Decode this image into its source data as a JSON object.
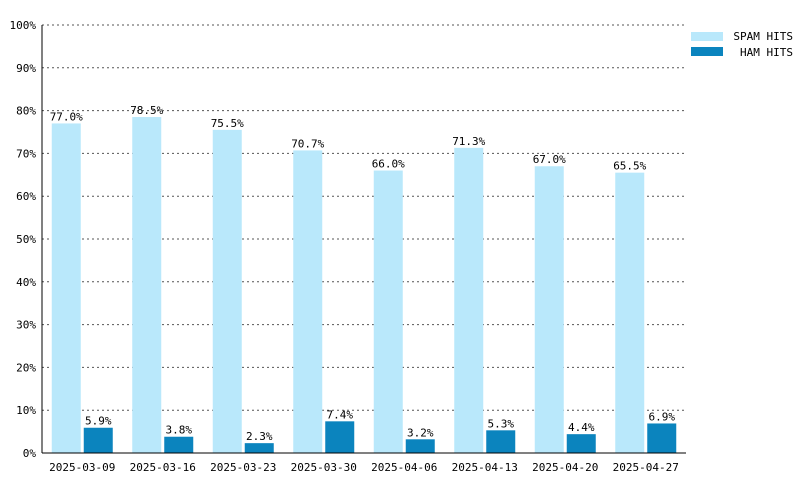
{
  "chart_data": {
    "type": "bar",
    "categories": [
      "2025-03-09",
      "2025-03-16",
      "2025-03-23",
      "2025-03-30",
      "2025-04-06",
      "2025-04-13",
      "2025-04-20",
      "2025-04-27"
    ],
    "series": [
      {
        "name": "SPAM HITS",
        "values": [
          77.0,
          78.5,
          75.5,
          70.7,
          66.0,
          71.3,
          67.0,
          65.5
        ],
        "labels": [
          "77.0%",
          "78.5%",
          "75.5%",
          "70.7%",
          "66.0%",
          "71.3%",
          "67.0%",
          "65.5%"
        ],
        "color": "#b9e8fb"
      },
      {
        "name": "HAM HITS",
        "values": [
          5.9,
          3.8,
          2.3,
          7.4,
          3.2,
          5.3,
          4.4,
          6.9
        ],
        "labels": [
          "5.9%",
          "3.8%",
          "2.3%",
          "7.4%",
          "3.2%",
          "5.3%",
          "4.4%",
          "6.9%"
        ],
        "color": "#0b84be"
      }
    ],
    "yticks": [
      "0%",
      "10%",
      "20%",
      "30%",
      "40%",
      "50%",
      "60%",
      "70%",
      "80%",
      "90%",
      "100%"
    ],
    "ylim": [
      0,
      100
    ],
    "title": "",
    "xlabel": "",
    "ylabel": "",
    "grid": true,
    "legend_position": "top-right"
  }
}
